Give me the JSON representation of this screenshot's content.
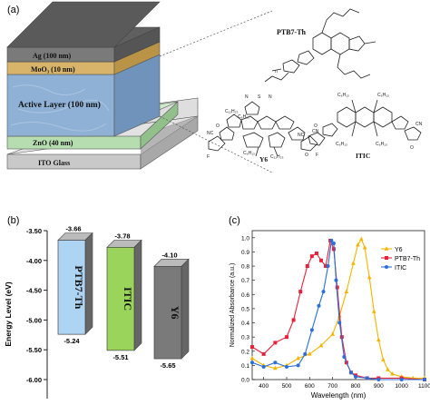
{
  "panel_a": {
    "label": "(a)",
    "layers": [
      {
        "name": "Ag (100 nm)",
        "color": "#6e6e6e"
      },
      {
        "name": "MoO₃ (10 nm)",
        "color": "#d7b46a"
      },
      {
        "name": "Active Layer (100 nm)",
        "color": "#8fb1d6"
      },
      {
        "name": "ZnO (40 nm)",
        "color": "#b6ddb0"
      },
      {
        "name": "ITO Glass",
        "color": "#c9c9c9"
      }
    ],
    "molecules": {
      "ptb7": "PTB7-Th",
      "y6": "Y6",
      "itic": "ITIC",
      "y6_labels": [
        "C₁₁H₂₃",
        "C₆H₁₃",
        "C₁₁H₂₃",
        "C₆H₁₃",
        "NC",
        "CN",
        "O",
        "O",
        "F",
        "F",
        "S",
        "N",
        "N"
      ],
      "itic_labels": [
        "C₆H₁₃",
        "C₆H₁₃",
        "C₆H₁₃",
        "C₆H₁₃",
        "NC",
        "CN",
        "O",
        "O"
      ]
    }
  },
  "panel_b": {
    "label": "(b)",
    "ylabel": "Energy Level (eV)",
    "ylim": [
      -6.0,
      -3.5
    ],
    "ticks": [
      "-3.50",
      "-4.00",
      "-4.50",
      "-5.00",
      "-5.50",
      "-6.00"
    ],
    "bars": [
      {
        "name": "PTB7-Th",
        "lumo": -3.66,
        "homo": -5.24,
        "lumo_label": "-3.66",
        "homo_label": "-5.24",
        "color": "#aed4f4"
      },
      {
        "name": "ITIC",
        "lumo": -3.78,
        "homo": -5.51,
        "lumo_label": "-3.78",
        "homo_label": "-5.51",
        "color": "#9bd45a"
      },
      {
        "name": "Y6",
        "lumo": -4.1,
        "homo": -5.65,
        "lumo_label": "-4.10",
        "homo_label": "-5.65",
        "color": "#7a7a7a"
      }
    ]
  },
  "chart_data": {
    "type": "line",
    "label": "(c)",
    "xlabel": "Wavelength (nm)",
    "ylabel": "Normalized Absorbance (a.u.)",
    "xlim": [
      350,
      1100
    ],
    "ylim": [
      0,
      1.05
    ],
    "xticks": [
      "400",
      "500",
      "600",
      "700",
      "800",
      "900",
      "1000",
      "1100"
    ],
    "yticks": [
      "0.0",
      "0.1",
      "0.2",
      "0.3",
      "0.4",
      "0.5",
      "0.6",
      "0.7",
      "0.8",
      "0.9",
      "1.0"
    ],
    "legend_position": "top-right",
    "series": [
      {
        "name": "Y6",
        "color": "#f5b400",
        "marker": "triangle",
        "x": [
          350,
          400,
          450,
          500,
          550,
          600,
          650,
          700,
          730,
          760,
          790,
          810,
          825,
          840,
          860,
          880,
          900,
          920,
          940,
          960,
          1000,
          1050,
          1100
        ],
        "y": [
          0.15,
          0.1,
          0.08,
          0.1,
          0.15,
          0.18,
          0.24,
          0.32,
          0.45,
          0.62,
          0.82,
          0.95,
          0.99,
          0.93,
          0.72,
          0.48,
          0.28,
          0.14,
          0.07,
          0.04,
          0.02,
          0.01,
          0.01
        ]
      },
      {
        "name": "PTB7-Th",
        "color": "#e8203a",
        "marker": "square",
        "x": [
          350,
          400,
          450,
          500,
          530,
          560,
          590,
          610,
          630,
          650,
          670,
          690,
          705,
          720,
          740,
          760,
          780,
          800,
          850,
          900,
          1000,
          1100
        ],
        "y": [
          0.23,
          0.18,
          0.26,
          0.3,
          0.42,
          0.62,
          0.8,
          0.87,
          0.89,
          0.84,
          0.8,
          0.98,
          0.92,
          0.65,
          0.3,
          0.12,
          0.05,
          0.03,
          0.01,
          0.01,
          0.01,
          0.0
        ]
      },
      {
        "name": "ITIC",
        "color": "#2a6fd6",
        "marker": "circle",
        "x": [
          350,
          400,
          450,
          500,
          550,
          580,
          610,
          640,
          660,
          680,
          695,
          705,
          715,
          730,
          750,
          780,
          800,
          850,
          900,
          1000,
          1100
        ],
        "y": [
          0.12,
          0.09,
          0.12,
          0.09,
          0.1,
          0.18,
          0.35,
          0.52,
          0.62,
          0.8,
          0.98,
          0.96,
          0.7,
          0.4,
          0.16,
          0.05,
          0.02,
          0.01,
          0.0,
          0.0,
          0.0
        ]
      }
    ]
  }
}
